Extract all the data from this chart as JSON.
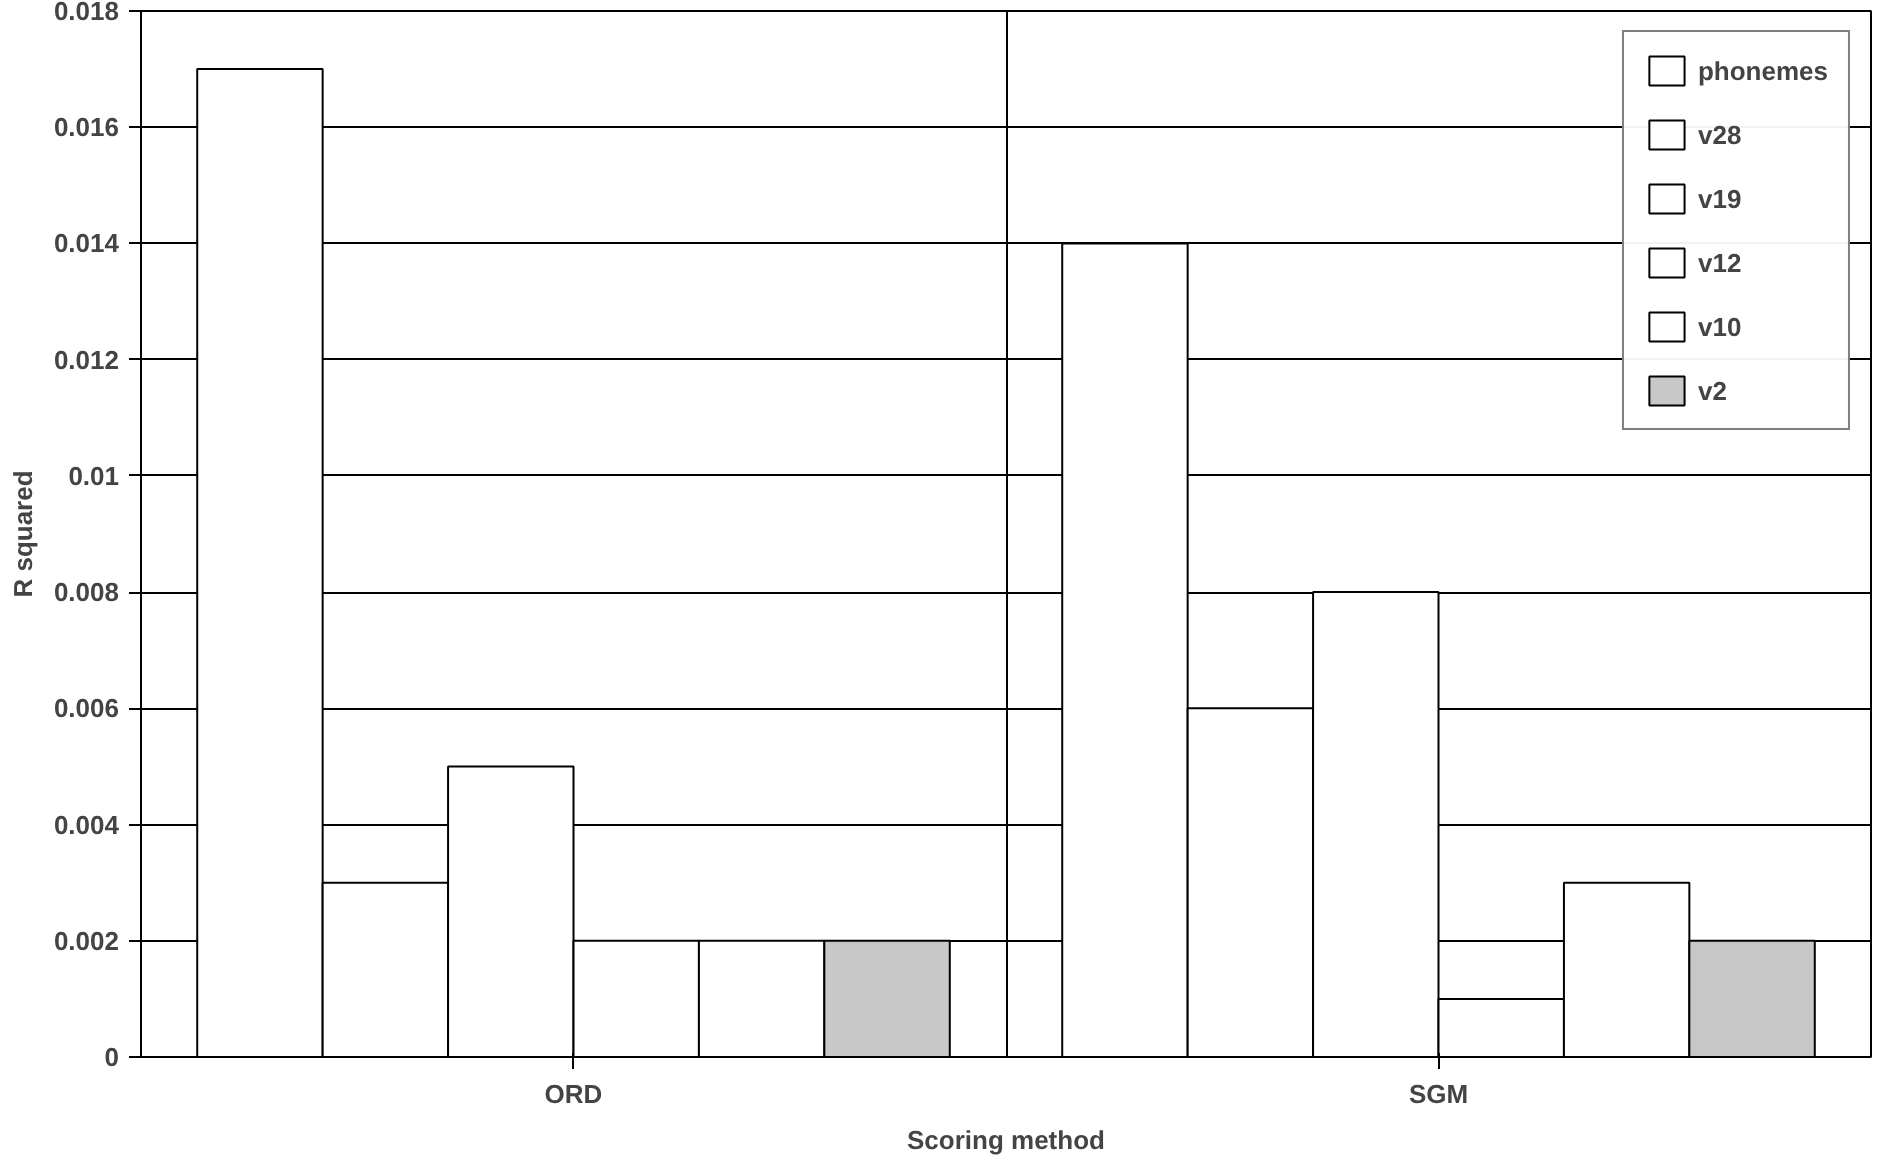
{
  "chart_data": {
    "type": "bar",
    "xlabel": "Scoring method",
    "ylabel": "R squared",
    "categories": [
      "ORD",
      "SGM"
    ],
    "series": [
      {
        "name": "phonemes",
        "color": "#ffffff",
        "values": [
          0.017,
          0.014
        ]
      },
      {
        "name": "v28",
        "color": "#ffffff",
        "values": [
          0.003,
          0.006
        ]
      },
      {
        "name": "v19",
        "color": "#ffffff",
        "values": [
          0.005,
          0.008
        ]
      },
      {
        "name": "v12",
        "color": "#ffffff",
        "values": [
          0.002,
          0.001
        ]
      },
      {
        "name": "v10",
        "color": "#ffffff",
        "values": [
          0.002,
          0.003
        ]
      },
      {
        "name": "v2",
        "color": "#c8c8c8",
        "values": [
          0.002,
          0.002
        ]
      }
    ],
    "ylim": [
      0,
      0.018
    ],
    "yticks": [
      0,
      0.002,
      0.004,
      0.006,
      0.008,
      0.01,
      0.012,
      0.014,
      0.016,
      0.018
    ],
    "grid": true,
    "legend": "top right"
  }
}
